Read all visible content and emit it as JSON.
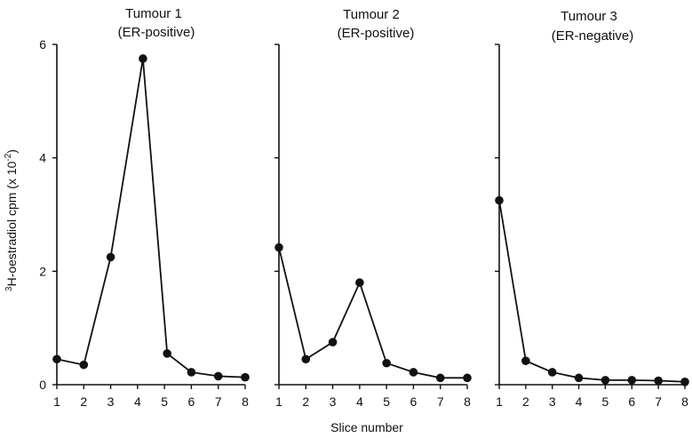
{
  "chart_data": [
    {
      "type": "line",
      "title": "Tumour 1",
      "subtitle": "(ER-positive)",
      "x": [
        1,
        2,
        3,
        4.2,
        5.1,
        6,
        7,
        8
      ],
      "y": [
        0.45,
        0.35,
        2.25,
        5.75,
        0.55,
        0.22,
        0.15,
        0.13
      ],
      "xlim": [
        1,
        8
      ],
      "ylim": [
        0,
        6
      ],
      "yticks": [
        0,
        2,
        4,
        6
      ],
      "xticks": [
        1,
        2,
        3,
        4,
        5,
        6,
        7,
        8
      ]
    },
    {
      "type": "line",
      "title": "Tumour 2",
      "subtitle": "(ER-positive)",
      "x": [
        1,
        2,
        3,
        4,
        5,
        6,
        7,
        8
      ],
      "y": [
        2.42,
        0.45,
        0.75,
        1.8,
        0.38,
        0.22,
        0.12,
        0.12
      ],
      "xlim": [
        1,
        8
      ],
      "ylim": [
        0,
        6
      ],
      "yticks": [
        0,
        2,
        4,
        6
      ],
      "xticks": [
        1,
        2,
        3,
        4,
        5,
        6,
        7,
        8
      ]
    },
    {
      "type": "line",
      "title": "Tumour 3",
      "subtitle": "(ER-negative)",
      "x": [
        1,
        2,
        3,
        4,
        5,
        6,
        7,
        8
      ],
      "y": [
        3.25,
        0.42,
        0.22,
        0.12,
        0.08,
        0.08,
        0.07,
        0.05
      ],
      "xlim": [
        1,
        8
      ],
      "ylim": [
        0,
        6
      ],
      "yticks": [
        0,
        2,
        4,
        6
      ],
      "xticks": [
        1,
        2,
        3,
        4,
        5,
        6,
        7,
        8
      ]
    }
  ],
  "ylabel": "3H-oestradiol cpm (x 10-2)",
  "ylabel_parts": {
    "sup_mass": "3",
    "main": "H-oestradiol cpm (x 10",
    "sup_exp": "-2",
    "close": ")"
  },
  "xlabel": "Slice number",
  "colors": {
    "line": "#111111",
    "marker": "#111111"
  }
}
